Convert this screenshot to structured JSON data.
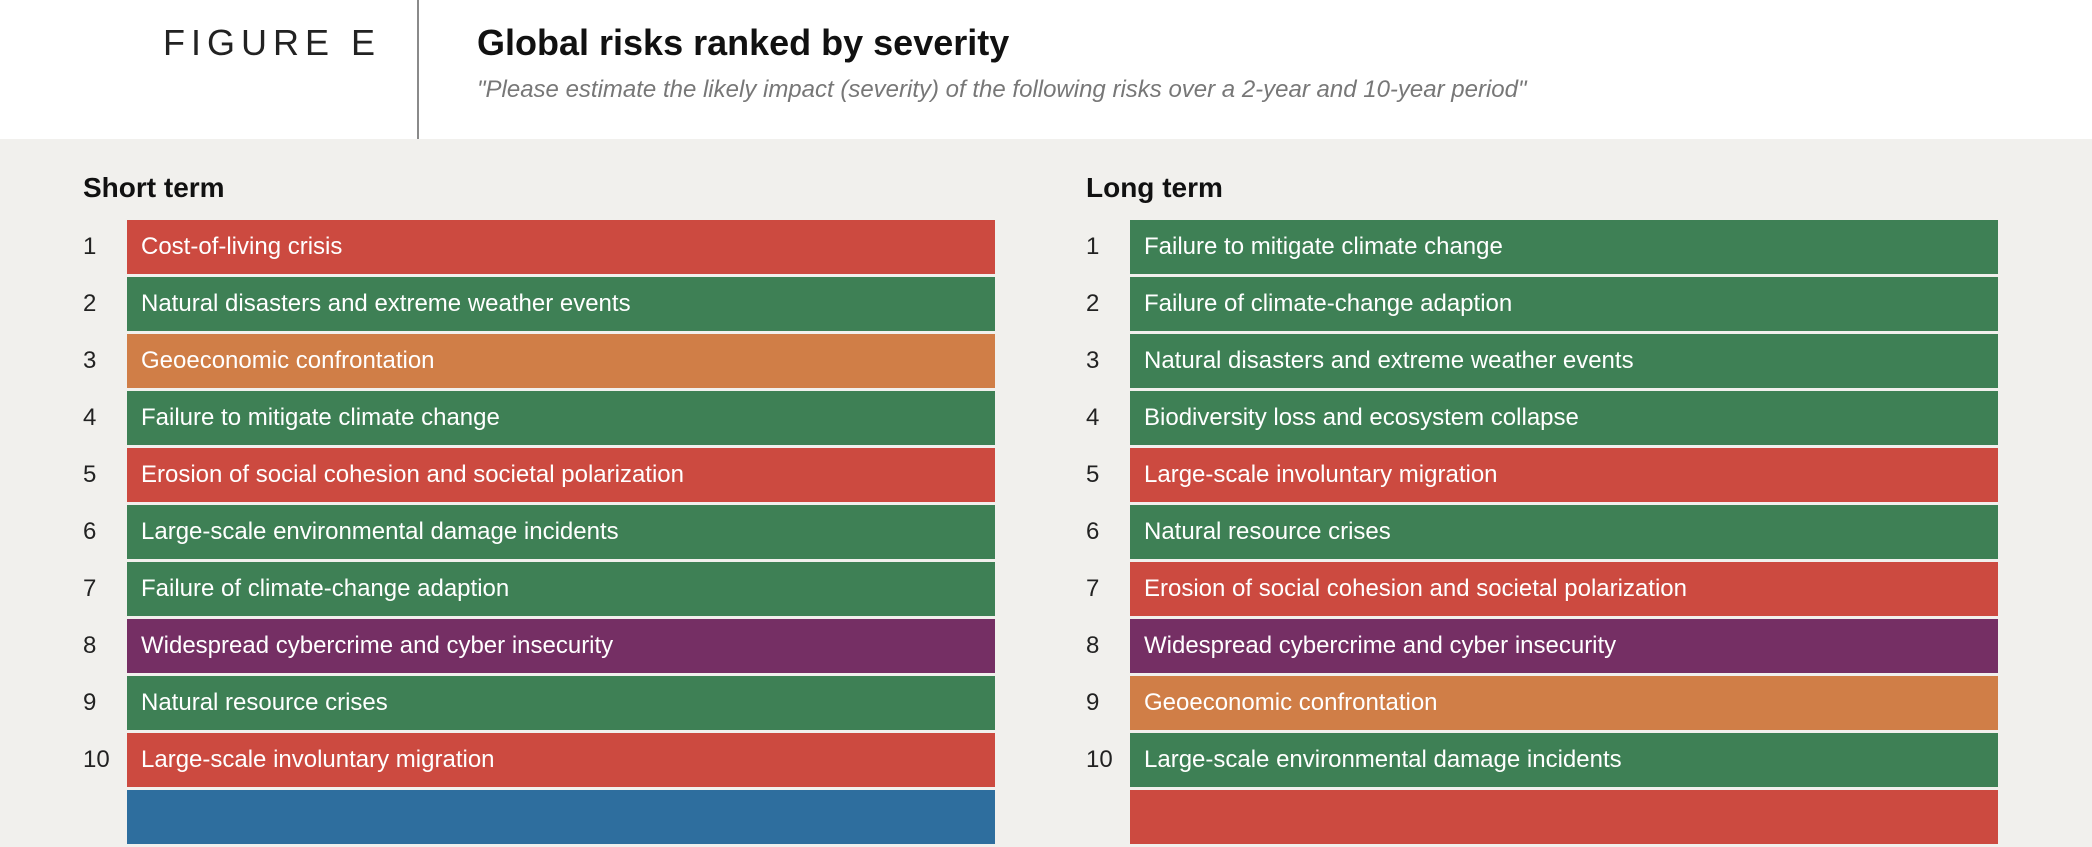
{
  "header": {
    "figure_label": "FIGURE E",
    "title": "Global risks ranked by severity",
    "subtitle": "\"Please estimate the likely impact (severity) of the following risks over a 2-year and 10-year period\""
  },
  "colors": {
    "Societal": "#cc4a40",
    "Environmental": "#3e8055",
    "Economic": "#d07e47",
    "Technological": "#752f64",
    "Geopolitical": "#2e6e9e"
  },
  "chart_data": {
    "type": "table",
    "columns": [
      {
        "title": "Short term",
        "items": [
          {
            "rank": "1",
            "label": "Cost-of-living crisis",
            "category": "Societal"
          },
          {
            "rank": "2",
            "label": "Natural disasters and extreme weather events",
            "category": "Environmental"
          },
          {
            "rank": "3",
            "label": "Geoeconomic confrontation",
            "category": "Economic"
          },
          {
            "rank": "4",
            "label": "Failure to mitigate climate change",
            "category": "Environmental"
          },
          {
            "rank": "5",
            "label": "Erosion of social cohesion and societal polarization",
            "category": "Societal"
          },
          {
            "rank": "6",
            "label": "Large-scale environmental damage incidents",
            "category": "Environmental"
          },
          {
            "rank": "7",
            "label": "Failure of climate-change adaption",
            "category": "Environmental"
          },
          {
            "rank": "8",
            "label": "Widespread cybercrime and cyber insecurity",
            "category": "Technological"
          },
          {
            "rank": "9",
            "label": "Natural resource crises",
            "category": "Environmental"
          },
          {
            "rank": "10",
            "label": "Large-scale involuntary migration",
            "category": "Societal"
          }
        ],
        "cut_off_next_category": "Geopolitical"
      },
      {
        "title": "Long term",
        "items": [
          {
            "rank": "1",
            "label": "Failure to mitigate climate change",
            "category": "Environmental"
          },
          {
            "rank": "2",
            "label": "Failure of climate-change adaption",
            "category": "Environmental"
          },
          {
            "rank": "3",
            "label": "Natural disasters and extreme weather events",
            "category": "Environmental"
          },
          {
            "rank": "4",
            "label": "Biodiversity loss and ecosystem collapse",
            "category": "Environmental"
          },
          {
            "rank": "5",
            "label": "Large-scale involuntary migration",
            "category": "Societal"
          },
          {
            "rank": "6",
            "label": "Natural resource crises",
            "category": "Environmental"
          },
          {
            "rank": "7",
            "label": "Erosion of social cohesion and societal polarization",
            "category": "Societal"
          },
          {
            "rank": "8",
            "label": "Widespread cybercrime and cyber insecurity",
            "category": "Technological"
          },
          {
            "rank": "9",
            "label": "Geoeconomic confrontation",
            "category": "Economic"
          },
          {
            "rank": "10",
            "label": "Large-scale environmental damage incidents",
            "category": "Environmental"
          }
        ],
        "cut_off_next_category": "Societal"
      }
    ]
  }
}
